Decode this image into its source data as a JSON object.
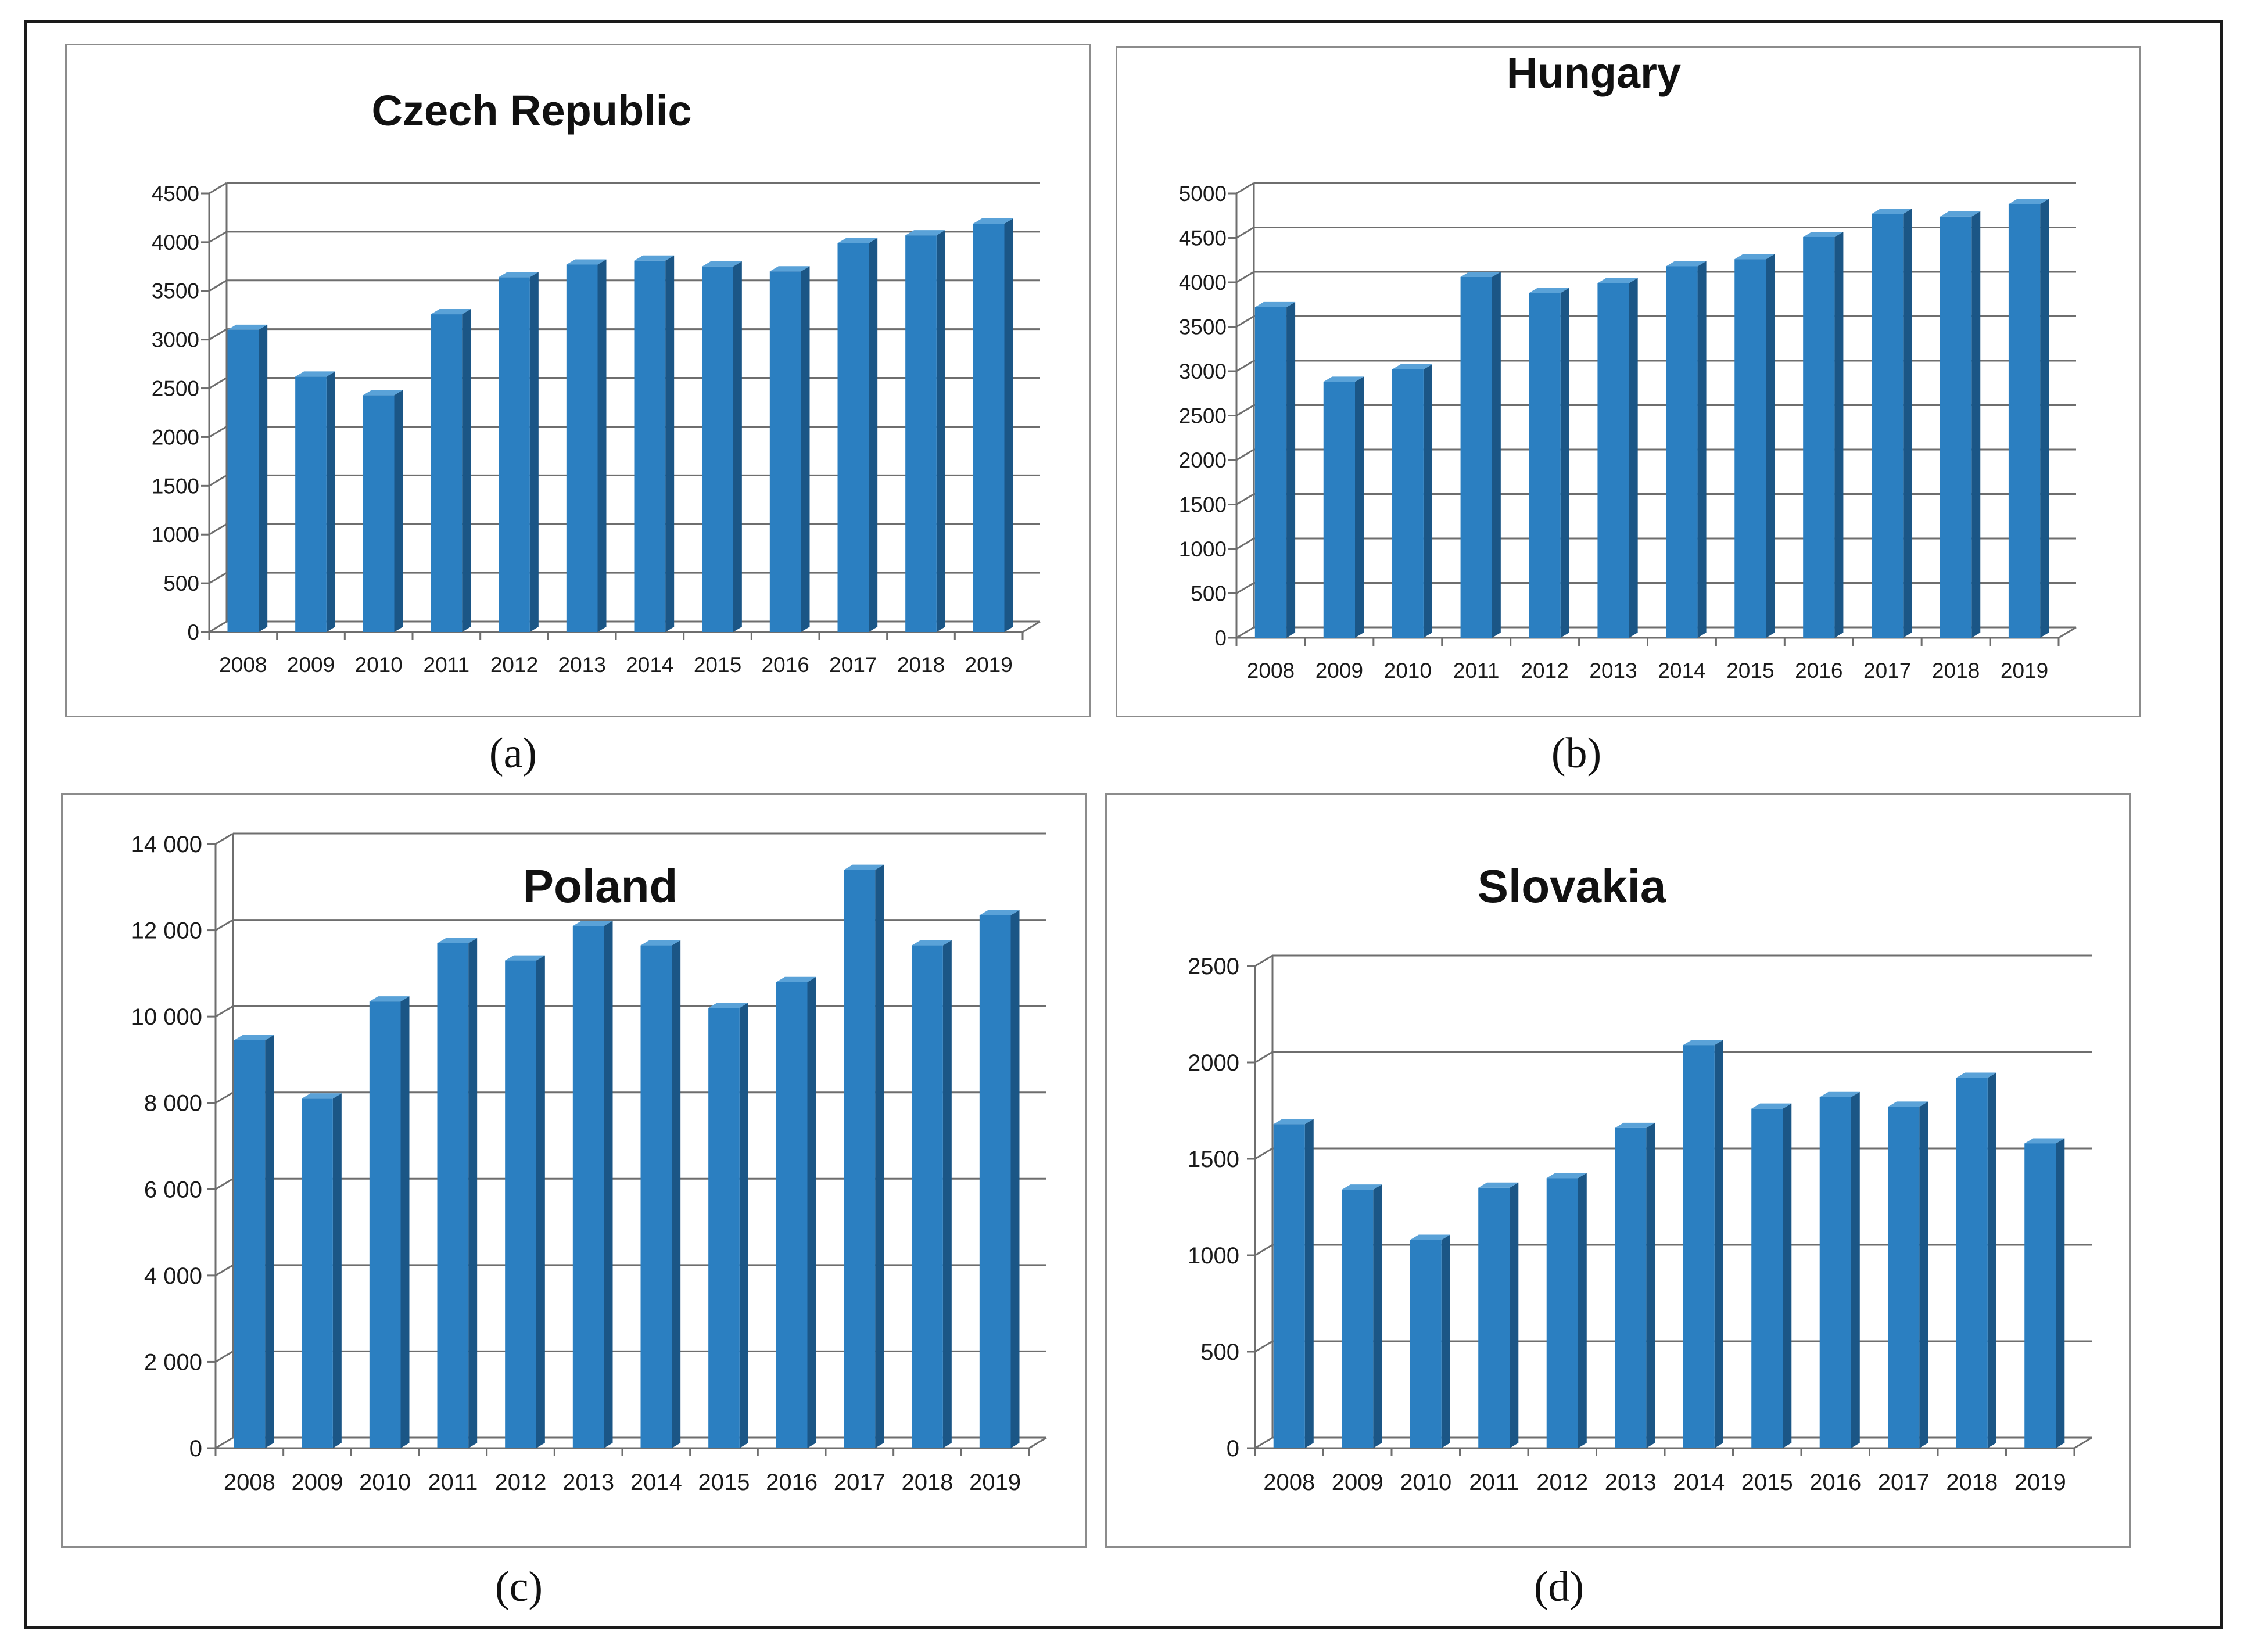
{
  "figure": {
    "captions": [
      "(a)",
      "(b)",
      "(c)",
      "(d)"
    ]
  },
  "colors": {
    "bar_front": "#2b7fc1",
    "bar_side": "#1b5686",
    "bar_top": "#5aa2d8",
    "grid": "#6e6e6e"
  },
  "chart_data": [
    {
      "type": "bar",
      "title": "Czech Republic",
      "categories": [
        "2008",
        "2009",
        "2010",
        "2011",
        "2012",
        "2013",
        "2014",
        "2015",
        "2016",
        "2017",
        "2018",
        "2019"
      ],
      "values": [
        3100,
        2620,
        2430,
        3260,
        3640,
        3770,
        3810,
        3750,
        3700,
        3990,
        4070,
        4190
      ],
      "yticks": [
        0,
        500,
        1000,
        1500,
        2000,
        2500,
        3000,
        3500,
        4000,
        4500
      ],
      "ytick_labels": [
        "0",
        "500",
        "1000",
        "1500",
        "2000",
        "2500",
        "3000",
        "3500",
        "4000",
        "4500"
      ],
      "ylim": [
        0,
        4500
      ],
      "xlabel": "",
      "ylabel": "",
      "grid": true
    },
    {
      "type": "bar",
      "title": "Hungary",
      "categories": [
        "2008",
        "2009",
        "2010",
        "2011",
        "2012",
        "2013",
        "2014",
        "2015",
        "2016",
        "2017",
        "2018",
        "2019"
      ],
      "values": [
        3720,
        2880,
        3020,
        4060,
        3880,
        3990,
        4180,
        4260,
        4510,
        4770,
        4740,
        4880
      ],
      "yticks": [
        0,
        500,
        1000,
        1500,
        2000,
        2500,
        3000,
        3500,
        4000,
        4500,
        5000
      ],
      "ytick_labels": [
        "0",
        "500",
        "1000",
        "1500",
        "2000",
        "2500",
        "3000",
        "3500",
        "4000",
        "4500",
        "5000"
      ],
      "ylim": [
        0,
        5000
      ],
      "xlabel": "",
      "ylabel": "",
      "grid": true
    },
    {
      "type": "bar",
      "title": "Poland",
      "categories": [
        "2008",
        "2009",
        "2010",
        "2011",
        "2012",
        "2013",
        "2014",
        "2015",
        "2016",
        "2017",
        "2018",
        "2019"
      ],
      "values": [
        9450,
        8100,
        10350,
        11700,
        11300,
        12100,
        11650,
        10200,
        10800,
        13400,
        11650,
        12350
      ],
      "yticks": [
        0,
        2000,
        4000,
        6000,
        8000,
        10000,
        12000,
        14000
      ],
      "ytick_labels": [
        "0",
        "2 000",
        "4 000",
        "6 000",
        "8 000",
        "10 000",
        "12 000",
        "14 000"
      ],
      "ylim": [
        0,
        14000
      ],
      "xlabel": "",
      "ylabel": "",
      "grid": true
    },
    {
      "type": "bar",
      "title": "Slovakia",
      "categories": [
        "2008",
        "2009",
        "2010",
        "2011",
        "2012",
        "2013",
        "2014",
        "2015",
        "2016",
        "2017",
        "2018",
        "2019"
      ],
      "values": [
        1680,
        1340,
        1080,
        1350,
        1400,
        1660,
        2090,
        1760,
        1820,
        1770,
        1920,
        1580
      ],
      "yticks": [
        0,
        500,
        1000,
        1500,
        2000,
        2500
      ],
      "ytick_labels": [
        "0",
        "500",
        "1000",
        "1500",
        "2000",
        "2500"
      ],
      "ylim": [
        0,
        2500
      ],
      "xlabel": "",
      "ylabel": "",
      "grid": true
    }
  ]
}
